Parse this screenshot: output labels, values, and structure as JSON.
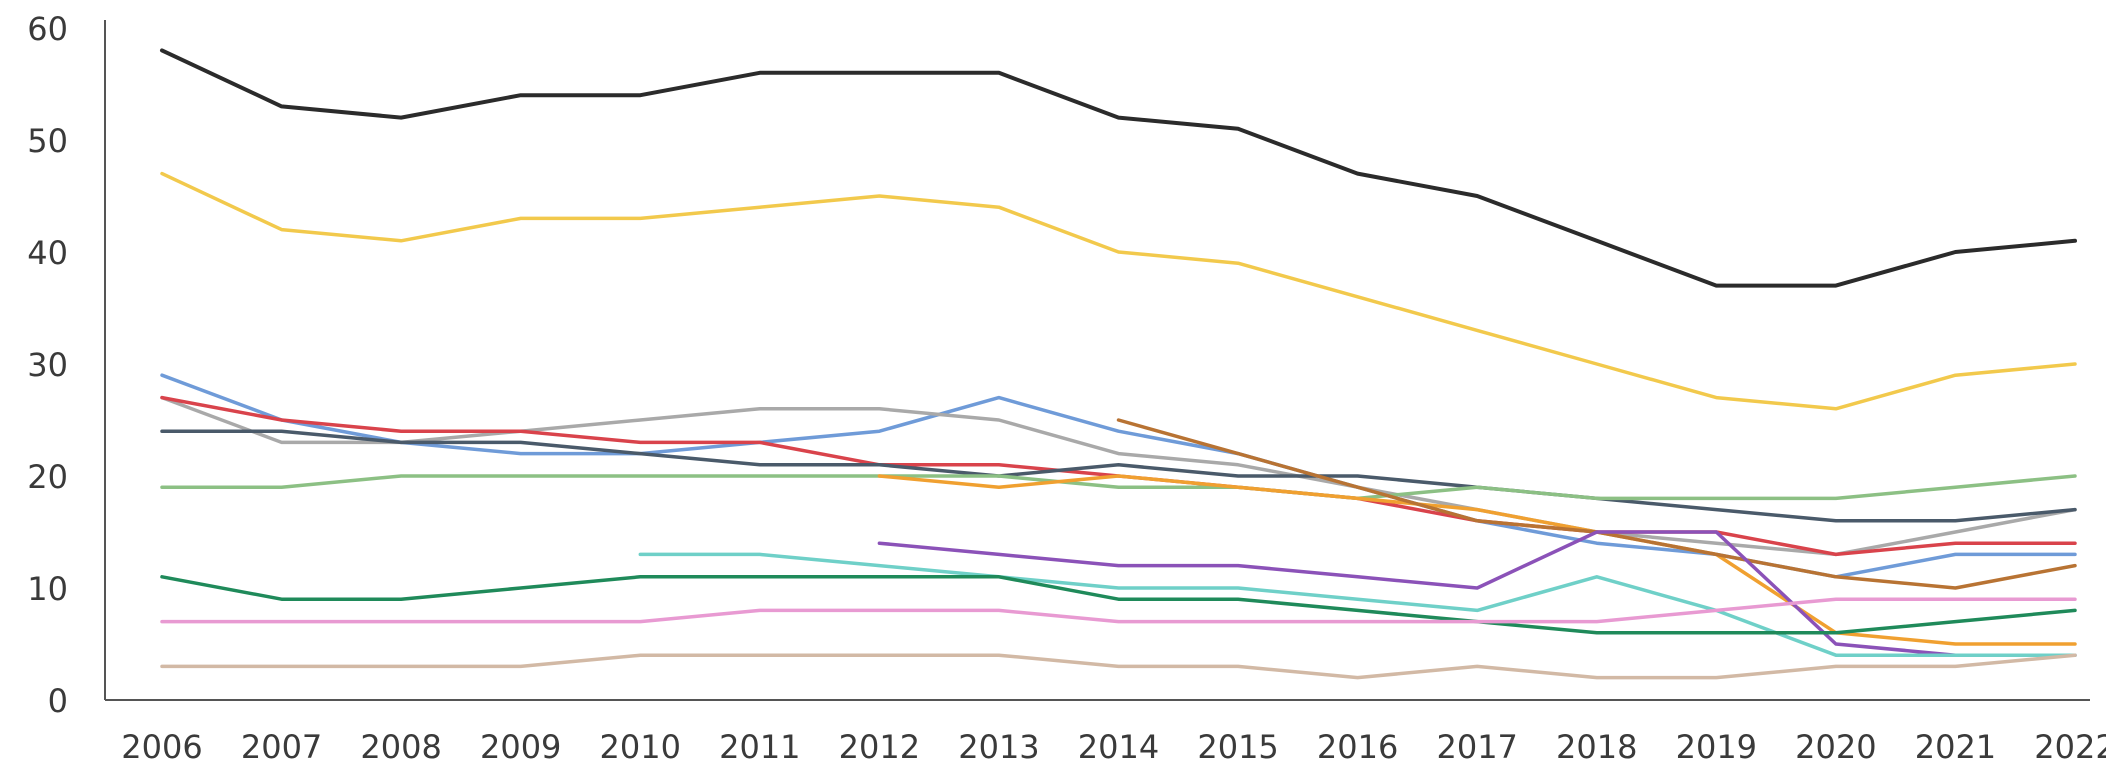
{
  "chart_data": {
    "type": "line",
    "title": "",
    "xlabel": "",
    "ylabel": "",
    "x": [
      2006,
      2007,
      2008,
      2009,
      2010,
      2011,
      2012,
      2013,
      2014,
      2015,
      2016,
      2017,
      2018,
      2019,
      2020,
      2021,
      2022
    ],
    "x_tick_labels": [
      "2006",
      "2007",
      "2008",
      "2009",
      "2010",
      "2011",
      "2012",
      "2013",
      "2014",
      "2015",
      "2016",
      "2017",
      "2018",
      "2019",
      "2020",
      "2021",
      "2022"
    ],
    "y_tick_labels": [
      "0",
      "10",
      "20",
      "30",
      "40",
      "50",
      "60"
    ],
    "ylim": [
      0,
      60
    ],
    "grid": false,
    "legend": "none",
    "series": [
      {
        "color": "#2b2b2b",
        "values": [
          58,
          53,
          52,
          54,
          54,
          56,
          56,
          56,
          52,
          51,
          47,
          45,
          41,
          37,
          37,
          40,
          41
        ]
      },
      {
        "color": "#f2c94c",
        "values": [
          47,
          42,
          41,
          43,
          43,
          44,
          45,
          44,
          40,
          39,
          36,
          33,
          30,
          27,
          26,
          29,
          30
        ]
      },
      {
        "color": "#6f9bd8",
        "values": [
          29,
          25,
          23,
          22,
          22,
          23,
          24,
          27,
          24,
          22,
          19,
          16,
          14,
          13,
          11,
          13,
          13
        ]
      },
      {
        "color": "#a9a9a9",
        "values": [
          27,
          23,
          23,
          24,
          25,
          26,
          26,
          25,
          22,
          21,
          19,
          17,
          15,
          14,
          13,
          15,
          17
        ]
      },
      {
        "color": "#d9434b",
        "values": [
          27,
          25,
          24,
          24,
          23,
          23,
          21,
          21,
          20,
          19,
          18,
          16,
          15,
          15,
          13,
          14,
          14
        ]
      },
      {
        "color": "#4a5a6a",
        "values": [
          24,
          24,
          23,
          23,
          22,
          21,
          21,
          20,
          21,
          20,
          20,
          19,
          18,
          17,
          16,
          16,
          17
        ]
      },
      {
        "color": "#8cc084",
        "values": [
          19,
          19,
          20,
          20,
          20,
          20,
          20,
          20,
          19,
          19,
          18,
          19,
          18,
          18,
          18,
          19,
          20
        ]
      },
      {
        "color": "#f0a030",
        "values": [
          null,
          null,
          null,
          null,
          null,
          null,
          20,
          19,
          20,
          19,
          18,
          17,
          15,
          13,
          6,
          5,
          5
        ]
      },
      {
        "color": "#b87333",
        "values": [
          null,
          null,
          null,
          null,
          null,
          null,
          null,
          null,
          25,
          22,
          19,
          16,
          15,
          13,
          11,
          10,
          12
        ]
      },
      {
        "color": "#8b52b8",
        "values": [
          null,
          null,
          null,
          null,
          null,
          null,
          14,
          13,
          12,
          12,
          11,
          10,
          15,
          15,
          5,
          4,
          4
        ]
      },
      {
        "color": "#6fd0c8",
        "values": [
          null,
          null,
          null,
          null,
          13,
          13,
          12,
          11,
          10,
          10,
          9,
          8,
          11,
          8,
          4,
          4,
          4
        ]
      },
      {
        "color": "#1f8a5a",
        "values": [
          11,
          9,
          9,
          10,
          11,
          11,
          11,
          11,
          9,
          9,
          8,
          7,
          6,
          6,
          6,
          7,
          8
        ]
      },
      {
        "color": "#e89ad2",
        "values": [
          7,
          7,
          7,
          7,
          7,
          8,
          8,
          8,
          7,
          7,
          7,
          7,
          7,
          8,
          9,
          9,
          9
        ]
      },
      {
        "color": "#d2b9a5",
        "values": [
          3,
          3,
          3,
          3,
          4,
          4,
          4,
          4,
          3,
          3,
          2,
          3,
          2,
          2,
          3,
          3,
          4
        ]
      }
    ]
  }
}
